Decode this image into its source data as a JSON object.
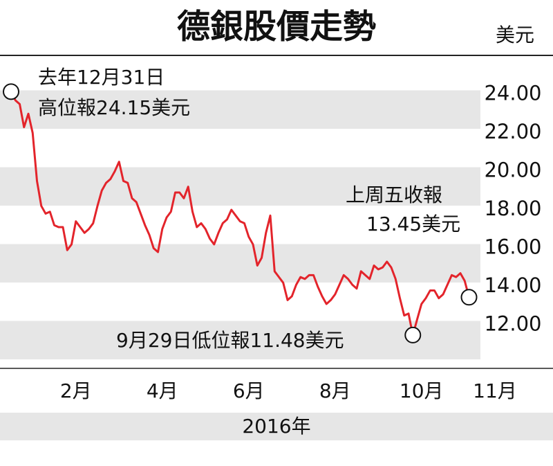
{
  "chart_data": {
    "type": "line",
    "title": "德銀股價走勢",
    "y_label": "美元",
    "x_label": "2016年",
    "x": [
      1,
      1.1,
      1.2,
      1.3,
      1.4,
      1.5,
      1.6,
      1.7,
      1.8,
      1.9,
      2,
      2.1,
      2.2,
      2.3,
      2.4,
      2.5,
      2.6,
      2.7,
      2.8,
      2.9,
      3,
      3.1,
      3.2,
      3.3,
      3.4,
      3.5,
      3.6,
      3.7,
      3.8,
      3.9,
      4,
      4.1,
      4.2,
      4.3,
      4.4,
      4.5,
      4.6,
      4.7,
      4.8,
      4.9,
      5,
      5.1,
      5.2,
      5.3,
      5.4,
      5.5,
      5.6,
      5.7,
      5.8,
      5.9,
      6,
      6.1,
      6.2,
      6.3,
      6.4,
      6.5,
      6.6,
      6.7,
      6.8,
      6.9,
      7,
      7.1,
      7.2,
      7.3,
      7.4,
      7.5,
      7.6,
      7.7,
      7.8,
      7.9,
      8,
      8.1,
      8.2,
      8.3,
      8.4,
      8.5,
      8.6,
      8.7,
      8.8,
      8.9,
      9,
      9.1,
      9.2,
      9.3,
      9.4,
      9.5,
      9.6,
      9.7,
      9.8,
      9.9,
      10,
      10.1,
      10.2,
      10.3,
      10.4,
      10.5,
      10.6,
      10.7,
      10.8,
      10.9,
      11,
      11.1,
      11.2,
      11.3,
      11.4,
      11.5,
      11.6
    ],
    "series": [
      {
        "color": "#e3242b",
        "values": [
          24.15,
          23.7,
          23.5,
          22.3,
          23.0,
          22.0,
          19.5,
          18.2,
          17.8,
          17.9,
          17.2,
          17.1,
          17.1,
          15.9,
          16.2,
          17.4,
          17.1,
          16.8,
          17.0,
          17.3,
          18.2,
          19.0,
          19.4,
          19.6,
          20.0,
          20.5,
          19.5,
          19.4,
          18.6,
          18.4,
          17.8,
          17.2,
          16.7,
          16.0,
          15.8,
          17.0,
          17.6,
          17.9,
          18.9,
          18.9,
          18.6,
          19.2,
          17.9,
          17.1,
          17.3,
          17.0,
          16.5,
          16.2,
          16.8,
          17.3,
          17.5,
          18.0,
          17.7,
          17.4,
          17.3,
          16.6,
          16.2,
          15.1,
          15.5,
          16.8,
          17.7,
          14.8,
          14.5,
          14.2,
          13.3,
          13.5,
          14.1,
          14.5,
          14.4,
          14.6,
          14.6,
          14.0,
          13.5,
          13.1,
          13.3,
          13.6,
          14.1,
          14.6,
          14.4,
          14.1,
          13.9,
          14.8,
          14.6,
          14.4,
          15.1,
          14.9,
          15.0,
          15.3,
          15.0,
          14.4,
          13.4,
          12.5,
          12.6,
          11.48,
          12.3,
          13.1,
          13.4,
          13.8,
          13.8,
          13.4,
          13.6,
          14.1,
          14.6,
          14.5,
          14.7,
          14.3,
          13.45
        ]
      }
    ],
    "xlim": [
      1,
      12
    ],
    "xticks": [
      {
        "value": 2.5,
        "label": "2月"
      },
      {
        "value": 4.5,
        "label": "4月"
      },
      {
        "value": 6.5,
        "label": "6月"
      },
      {
        "value": 8.5,
        "label": "8月"
      },
      {
        "value": 10.5,
        "label": "10月"
      },
      {
        "value": 12.2,
        "label": "11月"
      }
    ],
    "ylim": [
      10,
      26
    ],
    "yticks": [
      {
        "value": 24,
        "label": "24.00"
      },
      {
        "value": 22,
        "label": "22.00"
      },
      {
        "value": 20,
        "label": "20.00"
      },
      {
        "value": 18,
        "label": "18.00"
      },
      {
        "value": 16,
        "label": "16.00"
      },
      {
        "value": 14,
        "label": "14.00"
      },
      {
        "value": 12,
        "label": "12.00"
      }
    ],
    "bands": true,
    "annotations": [
      {
        "lines": [
          "去年12月31日",
          "高位報24.15美元"
        ]
      },
      {
        "lines": [
          "上周五收報",
          "13.45美元"
        ]
      },
      {
        "lines": [
          "9月29日低位報11.48美元"
        ]
      }
    ]
  }
}
